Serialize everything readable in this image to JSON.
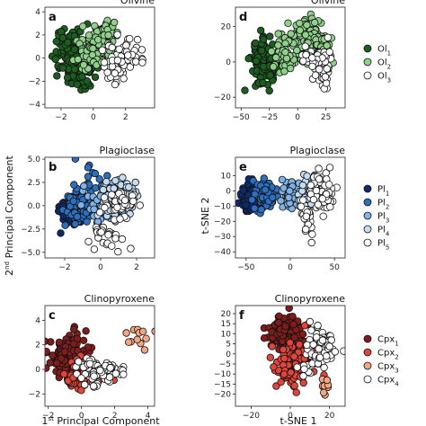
{
  "xlabel_pca": "1st Principal Component",
  "ylabel_pca": "2nd Principal Component",
  "xlabel_tsne": "t-SNE 1",
  "ylabel_tsne": "t-SNE 2",
  "chart_data": [
    {
      "type": "scatter",
      "letter": "a",
      "title": "Olivine",
      "method": "pca",
      "xlim": [
        -3.0,
        3.8
      ],
      "ylim": [
        -4.3,
        4.4
      ],
      "xticks": [
        -2,
        0,
        2
      ],
      "yticks": [
        -4,
        -2,
        0,
        2,
        4
      ],
      "series": [
        {
          "color": "#1b5e20",
          "clusters": [
            {
              "cx": -1.3,
              "cy": 0.0,
              "sx": 0.55,
              "sy": 1.1,
              "n": 140
            },
            {
              "cx": -0.5,
              "cy": -0.9,
              "sx": 0.4,
              "sy": 0.9,
              "n": 40
            },
            {
              "cx": -1.5,
              "cy": 1.7,
              "sx": 0.4,
              "sy": 0.5,
              "n": 20
            }
          ]
        },
        {
          "color": "#8fd18b",
          "clusters": [
            {
              "cx": 0.3,
              "cy": 1.2,
              "sx": 0.5,
              "sy": 0.8,
              "n": 100
            },
            {
              "cx": -0.3,
              "cy": 0.2,
              "sx": 0.4,
              "sy": 0.6,
              "n": 40
            },
            {
              "cx": 1.0,
              "cy": 2.2,
              "sx": 0.3,
              "sy": 0.5,
              "n": 15
            }
          ]
        },
        {
          "color": "#ffffff",
          "clusters": [
            {
              "cx": 1.4,
              "cy": -0.3,
              "sx": 0.5,
              "sy": 0.9,
              "n": 55
            },
            {
              "cx": 2.3,
              "cy": 0.2,
              "sx": 0.45,
              "sy": 0.7,
              "n": 22
            }
          ]
        }
      ]
    },
    {
      "type": "scatter",
      "letter": "d",
      "title": "Olivine",
      "method": "tsne",
      "xlim": [
        -55,
        42
      ],
      "ylim": [
        -26,
        31
      ],
      "xticks": [
        -50,
        -25,
        0,
        25
      ],
      "yticks": [
        -20,
        0,
        20
      ],
      "series": [
        {
          "color": "#1b5e20",
          "clusters": [
            {
              "cx": -32,
              "cy": 0,
              "sx": 4.5,
              "sy": 6,
              "n": 130
            },
            {
              "cx": -22,
              "cy": -3,
              "sx": 3.5,
              "sy": 5,
              "n": 30
            }
          ]
        },
        {
          "color": "#8fd18b",
          "clusters": [
            {
              "cx": 8,
              "cy": 12,
              "sx": 8,
              "sy": 6,
              "n": 130
            },
            {
              "cx": -12,
              "cy": 5,
              "sx": 5,
              "sy": 5,
              "n": 40
            },
            {
              "cx": 22,
              "cy": 5,
              "sx": 4,
              "sy": 5,
              "n": 30
            }
          ]
        },
        {
          "color": "#ffffff",
          "clusters": [
            {
              "cx": 22,
              "cy": -2,
              "sx": 4,
              "sy": 6,
              "n": 50
            },
            {
              "cx": 10,
              "cy": 2,
              "sx": 4,
              "sy": 3,
              "n": 15
            }
          ]
        }
      ]
    },
    {
      "type": "scatter",
      "letter": "b",
      "title": "Plagioclase",
      "method": "pca",
      "xlim": [
        -3.1,
        3.0
      ],
      "ylim": [
        -5.6,
        5.2
      ],
      "xticks": [
        -2,
        0,
        2
      ],
      "yticks": [
        -5.0,
        -2.5,
        0.0,
        2.5,
        5.0
      ],
      "series": [
        {
          "color": "#0d2b6b",
          "clusters": [
            {
              "cx": -1.7,
              "cy": -0.5,
              "sx": 0.35,
              "sy": 0.7,
              "n": 90
            }
          ]
        },
        {
          "color": "#2d6fbf",
          "clusters": [
            {
              "cx": -1.0,
              "cy": 0.2,
              "sx": 0.45,
              "sy": 0.9,
              "n": 80
            },
            {
              "cx": -0.6,
              "cy": 2.8,
              "sx": 0.5,
              "sy": 0.8,
              "n": 12
            }
          ]
        },
        {
          "color": "#7fb2e6",
          "clusters": [
            {
              "cx": 0.3,
              "cy": 0.1,
              "sx": 0.5,
              "sy": 0.9,
              "n": 80
            }
          ]
        },
        {
          "color": "#c5ddf3",
          "clusters": [
            {
              "cx": 0.8,
              "cy": 0.7,
              "sx": 0.5,
              "sy": 0.9,
              "n": 60
            },
            {
              "cx": 1.3,
              "cy": 2.0,
              "sx": 0.4,
              "sy": 0.5,
              "n": 15
            }
          ]
        },
        {
          "color": "#ffffff",
          "clusters": [
            {
              "cx": 1.1,
              "cy": 0.0,
              "sx": 0.45,
              "sy": 0.9,
              "n": 45
            },
            {
              "cx": 0.4,
              "cy": -3.2,
              "sx": 0.45,
              "sy": 0.7,
              "n": 25
            }
          ]
        }
      ]
    },
    {
      "type": "scatter",
      "letter": "e",
      "title": "Plagioclase",
      "method": "tsne",
      "xlim": [
        -62,
        62
      ],
      "ylim": [
        -44,
        22
      ],
      "xticks": [
        -50,
        0,
        50
      ],
      "yticks": [
        -40,
        -30,
        -20,
        -10,
        0,
        10
      ],
      "series": [
        {
          "color": "#0d2b6b",
          "clusters": [
            {
              "cx": -45,
              "cy": -4,
              "sx": 5,
              "sy": 4,
              "n": 110
            }
          ]
        },
        {
          "color": "#2d6fbf",
          "clusters": [
            {
              "cx": -30,
              "cy": -3,
              "sx": 7,
              "sy": 5,
              "n": 90
            }
          ]
        },
        {
          "color": "#7fb2e6",
          "clusters": [
            {
              "cx": 0,
              "cy": -3,
              "sx": 6,
              "sy": 5,
              "n": 60
            }
          ]
        },
        {
          "color": "#c5ddf3",
          "clusters": [
            {
              "cx": 20,
              "cy": -2,
              "sx": 6,
              "sy": 6,
              "n": 50
            }
          ]
        },
        {
          "color": "#ffffff",
          "clusters": [
            {
              "cx": 35,
              "cy": -1,
              "sx": 7,
              "sy": 7,
              "n": 80
            },
            {
              "cx": 20,
              "cy": -20,
              "sx": 2.5,
              "sy": 6,
              "n": 25
            }
          ]
        }
      ]
    },
    {
      "type": "scatter",
      "letter": "c",
      "title": "Clinopyroxene",
      "method": "pca",
      "xlim": [
        -2.2,
        4.4
      ],
      "ylim": [
        -3.0,
        5.2
      ],
      "xticks": [
        -2,
        0,
        2,
        4
      ],
      "yticks": [
        -2,
        0,
        2,
        4
      ],
      "series": [
        {
          "color": "#7f1d1d",
          "clusters": [
            {
              "cx": -0.9,
              "cy": 1.2,
              "sx": 0.55,
              "sy": 0.9,
              "n": 110
            }
          ]
        },
        {
          "color": "#e0443b",
          "clusters": [
            {
              "cx": 0.0,
              "cy": -0.5,
              "sx": 0.5,
              "sy": 0.7,
              "n": 80
            }
          ]
        },
        {
          "color": "#f4a582",
          "clusters": [
            {
              "cx": 3.2,
              "cy": 2.5,
              "sx": 0.4,
              "sy": 0.6,
              "n": 12
            }
          ]
        },
        {
          "color": "#ffffff",
          "clusters": [
            {
              "cx": 1.0,
              "cy": -0.3,
              "sx": 0.7,
              "sy": 0.6,
              "n": 55
            },
            {
              "cx": 1.8,
              "cy": 0.2,
              "sx": 0.4,
              "sy": 0.4,
              "n": 15
            }
          ]
        }
      ]
    },
    {
      "type": "scatter",
      "letter": "f",
      "title": "Clinopyroxene",
      "method": "tsne",
      "xlim": [
        -28,
        28
      ],
      "ylim": [
        -26,
        24
      ],
      "xticks": [
        -20,
        0,
        20
      ],
      "yticks": [
        -20,
        -15,
        -10,
        -5,
        0,
        5,
        10,
        15,
        20
      ],
      "series": [
        {
          "color": "#7f1d1d",
          "clusters": [
            {
              "cx": -2,
              "cy": 11,
              "sx": 5,
              "sy": 4,
              "n": 120
            }
          ]
        },
        {
          "color": "#e0443b",
          "clusters": [
            {
              "cx": 1,
              "cy": -6,
              "sx": 5,
              "sy": 5,
              "n": 110
            }
          ]
        },
        {
          "color": "#f4a582",
          "clusters": [
            {
              "cx": 18,
              "cy": -17,
              "sx": 1.5,
              "sy": 2,
              "n": 10
            }
          ]
        },
        {
          "color": "#ffffff",
          "clusters": [
            {
              "cx": 14,
              "cy": 0,
              "sx": 4,
              "sy": 6,
              "n": 55
            },
            {
              "cx": 18,
              "cy": 5,
              "sx": 3,
              "sy": 4,
              "n": 20
            }
          ]
        }
      ]
    }
  ],
  "legends": [
    {
      "entries": [
        {
          "label": "Ol",
          "sub": "1",
          "color": "#1b5e20"
        },
        {
          "label": "Ol",
          "sub": "2",
          "color": "#8fd18b"
        },
        {
          "label": "Ol",
          "sub": "3",
          "color": "#ffffff"
        }
      ]
    },
    {
      "entries": [
        {
          "label": "Pl",
          "sub": "1",
          "color": "#0d2b6b"
        },
        {
          "label": "Pl",
          "sub": "2",
          "color": "#2d6fbf"
        },
        {
          "label": "Pl",
          "sub": "3",
          "color": "#7fb2e6"
        },
        {
          "label": "Pl",
          "sub": "4",
          "color": "#c5ddf3"
        },
        {
          "label": "Pl",
          "sub": "5",
          "color": "#ffffff"
        }
      ]
    },
    {
      "entries": [
        {
          "label": "Cpx",
          "sub": "1",
          "color": "#7f1d1d"
        },
        {
          "label": "Cpx",
          "sub": "2",
          "color": "#e0443b"
        },
        {
          "label": "Cpx",
          "sub": "3",
          "color": "#f4a582"
        },
        {
          "label": "Cpx",
          "sub": "4",
          "color": "#ffffff"
        }
      ]
    }
  ]
}
